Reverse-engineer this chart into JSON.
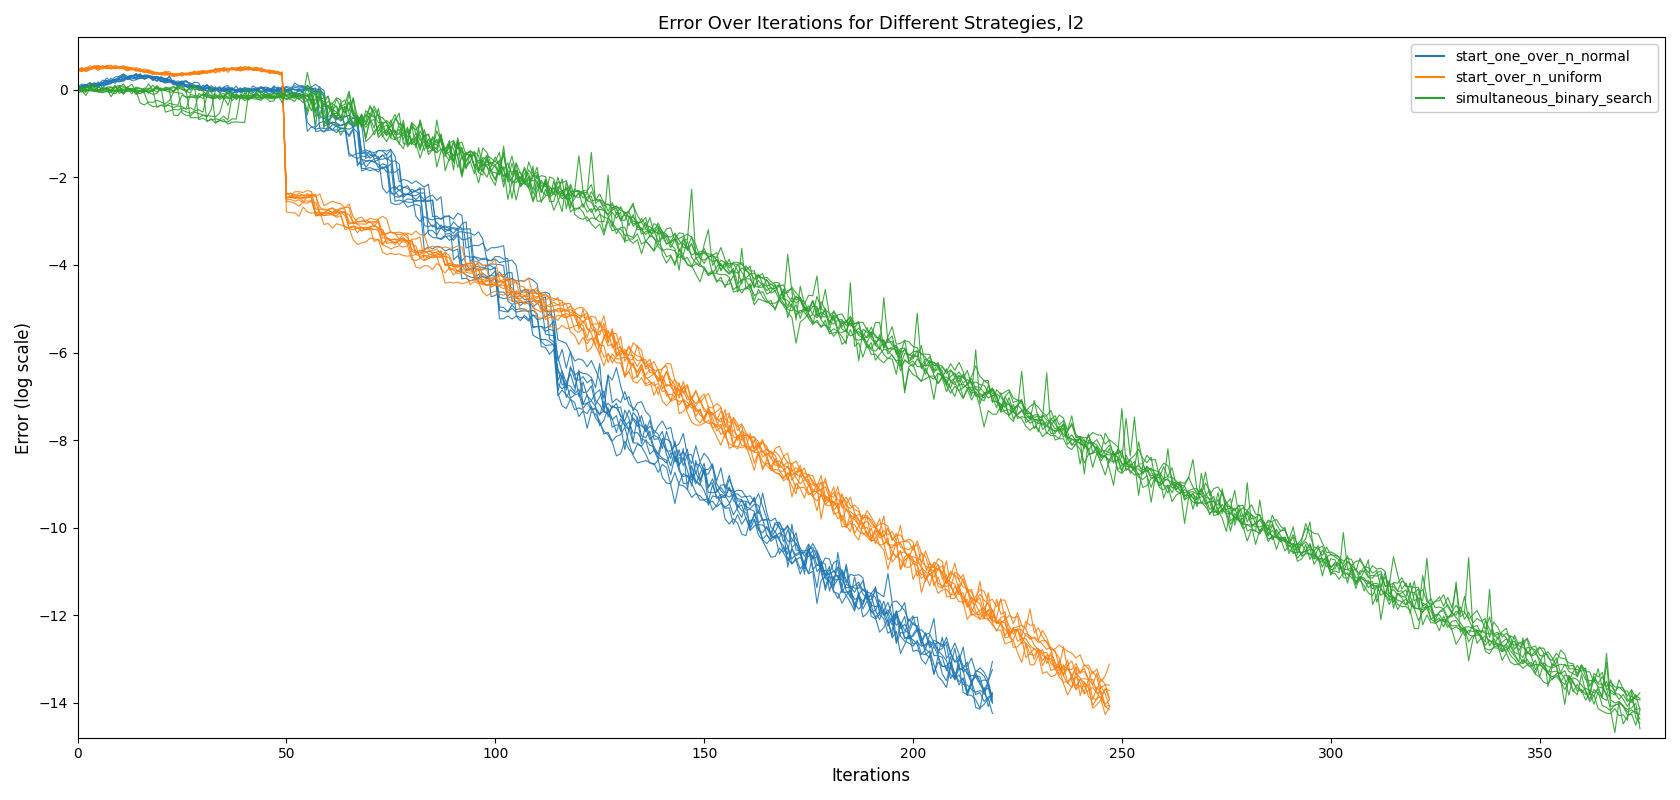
{
  "title": "Error Over Iterations for Different Strategies, l2",
  "xlabel": "Iterations",
  "ylabel": "Error (log scale)",
  "legend_labels": [
    "start_one_over_n_normal",
    "start_over_n_uniform",
    "simultaneous_binary_search"
  ],
  "colors": [
    "#1f77b4",
    "#ff7f0e",
    "#2ca02c"
  ],
  "n_runs": 10,
  "xlim": [
    0,
    380
  ],
  "ylim": [
    -14.8,
    1.2
  ],
  "xticks": [
    0,
    50,
    100,
    150,
    200,
    250,
    300,
    350
  ],
  "yticks": [
    0,
    -2,
    -4,
    -6,
    -8,
    -10,
    -12,
    -14
  ],
  "figsize": [
    16.8,
    8.0
  ],
  "dpi": 100,
  "linewidth": 0.8,
  "alpha": 0.9,
  "seed": 42,
  "blue_n_steps": 220,
  "orange_n_steps": 248,
  "green_n_steps": 375
}
